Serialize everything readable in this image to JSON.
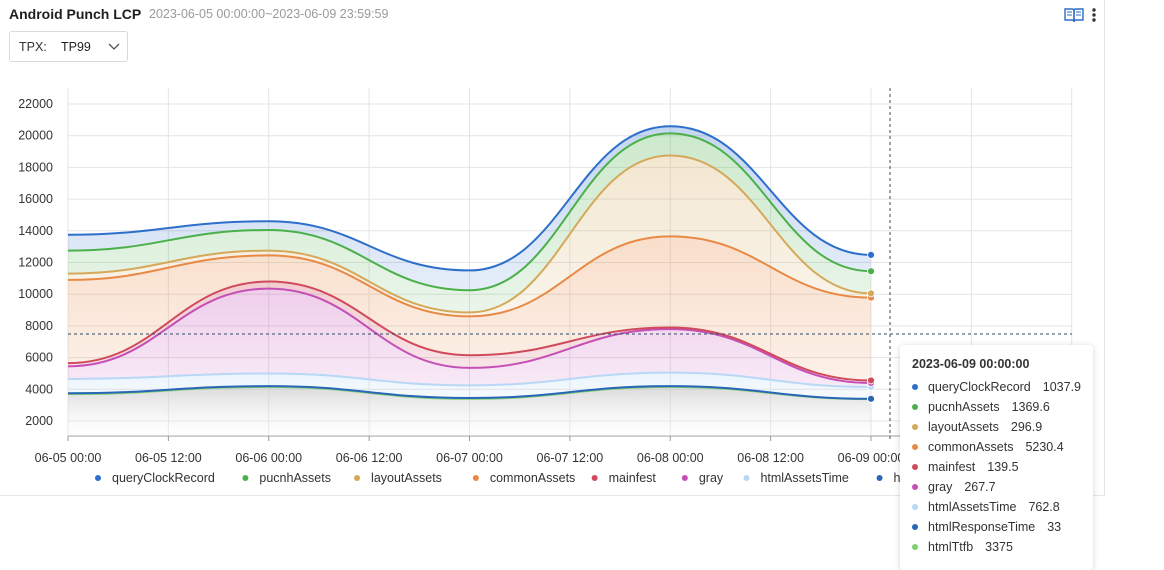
{
  "header": {
    "title": "Android Punch LCP",
    "range": "2023-06-05 00:00:00~2023-06-09 23:59:59",
    "book_icon": "book-icon",
    "more_icon": "more-vertical-icon"
  },
  "filter": {
    "label": "TPX:",
    "value": "TP99",
    "icon": "chevron-down-icon"
  },
  "tooltip": {
    "title": "2023-06-09 00:00:00",
    "rows": [
      {
        "name": "queryClockRecord",
        "value": "1037.9",
        "color": "#2e6fcb"
      },
      {
        "name": "pucnhAssets",
        "value": "1369.6",
        "color": "#4cb04a"
      },
      {
        "name": "layoutAssets",
        "value": "296.9",
        "color": "#d4a95a"
      },
      {
        "name": "commonAssets",
        "value": "5230.4",
        "color": "#e88a45"
      },
      {
        "name": "mainfest",
        "value": "139.5",
        "color": "#d04a5c"
      },
      {
        "name": "gray",
        "value": "267.7",
        "color": "#c54fb6"
      },
      {
        "name": "htmlAssetsTime",
        "value": "762.8",
        "color": "#b8d8f5"
      },
      {
        "name": "htmlResponseTime",
        "value": "33",
        "color": "#2a66b8"
      },
      {
        "name": "htmlTtfb",
        "value": "3375",
        "color": "#7fcf6e"
      }
    ]
  },
  "chart_data": {
    "type": "area",
    "x": [
      "06-05 00:00",
      "06-06 00:00",
      "06-07 00:00",
      "06-08 00:00",
      "06-09 00:00"
    ],
    "xticks": [
      "06-05 00:00",
      "06-05 12:00",
      "06-06 00:00",
      "06-06 12:00",
      "06-07 00:00",
      "06-07 12:00",
      "06-08 00:00",
      "06-08 12:00",
      "06-09 00:00"
    ],
    "yticks": [
      2000,
      4000,
      6000,
      8000,
      10000,
      12000,
      14000,
      16000,
      18000,
      20000,
      22000
    ],
    "ylim": [
      0,
      22000
    ],
    "stacked": true,
    "series": [
      {
        "name": "queryClockRecord",
        "color": "#2e6fcb",
        "cumulative": [
          13750,
          14600,
          11500,
          20600,
          12480
        ]
      },
      {
        "name": "pucnhAssets",
        "color": "#4cb04a",
        "cumulative": [
          12750,
          14050,
          10250,
          20150,
          11450
        ]
      },
      {
        "name": "layoutAssets",
        "color": "#d4a95a",
        "cumulative": [
          11300,
          12750,
          8850,
          18750,
          10050
        ]
      },
      {
        "name": "commonAssets",
        "color": "#e88a45",
        "cumulative": [
          10900,
          12450,
          8600,
          13650,
          9780
        ]
      },
      {
        "name": "mainfest",
        "color": "#d04a5c",
        "cumulative": [
          5650,
          10800,
          6150,
          7900,
          4560
        ]
      },
      {
        "name": "gray",
        "color": "#c54fb6",
        "cumulative": [
          5450,
          10350,
          5350,
          7800,
          4400
        ]
      },
      {
        "name": "htmlAssetsTime",
        "color": "#b8d8f5",
        "cumulative": [
          4650,
          5000,
          4250,
          5050,
          4150
        ]
      },
      {
        "name": "htmlResponseTime",
        "color": "#2a66b8",
        "cumulative": [
          3750,
          4200,
          3450,
          4200,
          3400
        ]
      },
      {
        "name": "htmlTtfb",
        "color": "#7fcf6e",
        "cumulative": [
          3700,
          4150,
          3400,
          4150,
          3380
        ]
      }
    ],
    "legend": [
      "queryClockRecord",
      "pucnhAssets",
      "layoutAssets",
      "commonAssets",
      "mainfest",
      "gray",
      "htmlAssetsTime",
      "htmlResponseTime"
    ],
    "legend_position": "bottom",
    "grid": true
  }
}
